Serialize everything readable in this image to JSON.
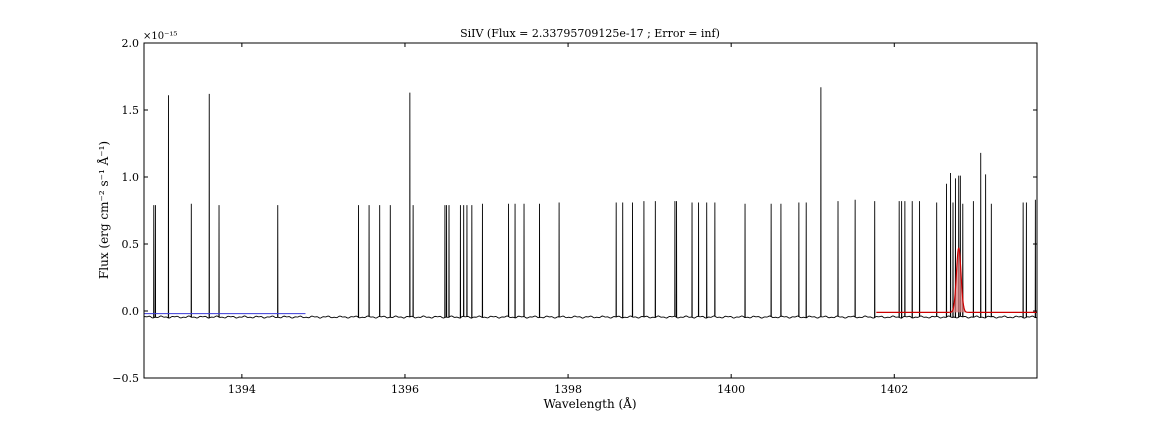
{
  "chart_data": {
    "type": "line",
    "title": "SiIV (Flux = 2.33795709125e-17 ; Error = inf)",
    "xlabel": "Wavelength (Å)",
    "ylabel": "Flux (erg cm⁻² s⁻¹ Å⁻¹)",
    "y_multiplier_label": "×10⁻¹⁵",
    "xlim": [
      1392.8,
      1403.75
    ],
    "ylim": [
      -0.5,
      2.0
    ],
    "x_ticks": [
      1394,
      1396,
      1398,
      1400,
      1402
    ],
    "x_tick_labels": [
      "1394",
      "1396",
      "1398",
      "1400",
      "1402"
    ],
    "y_ticks": [
      -0.5,
      0.0,
      0.5,
      1.0,
      1.5,
      2.0
    ],
    "y_tick_labels": [
      "−0.5",
      "0.0",
      "0.5",
      "1.0",
      "1.5",
      "2.0"
    ],
    "grid": false,
    "spectrum": {
      "color": "#000000",
      "baseline": -0.045,
      "noise_amp": 0.008,
      "spikes": [
        [
          1392.92,
          0.79
        ],
        [
          1392.94,
          0.79
        ],
        [
          1393.1,
          1.61
        ],
        [
          1393.38,
          0.8
        ],
        [
          1393.6,
          1.62
        ],
        [
          1393.72,
          0.79
        ],
        [
          1394.44,
          0.79
        ],
        [
          1395.43,
          0.79
        ],
        [
          1395.56,
          0.79
        ],
        [
          1395.69,
          0.79
        ],
        [
          1395.82,
          0.79
        ],
        [
          1396.06,
          1.63
        ],
        [
          1396.1,
          0.79
        ],
        [
          1396.49,
          0.79
        ],
        [
          1396.51,
          0.79
        ],
        [
          1396.54,
          0.79
        ],
        [
          1396.68,
          0.79
        ],
        [
          1396.72,
          0.79
        ],
        [
          1396.76,
          0.79
        ],
        [
          1396.82,
          0.79
        ],
        [
          1396.95,
          0.8
        ],
        [
          1397.27,
          0.8
        ],
        [
          1397.35,
          0.8
        ],
        [
          1397.46,
          0.8
        ],
        [
          1397.65,
          0.8
        ],
        [
          1397.89,
          0.81
        ],
        [
          1398.59,
          0.81
        ],
        [
          1398.67,
          0.81
        ],
        [
          1398.79,
          0.81
        ],
        [
          1398.93,
          0.82
        ],
        [
          1399.07,
          0.82
        ],
        [
          1399.31,
          0.82
        ],
        [
          1399.33,
          0.82
        ],
        [
          1399.52,
          0.81
        ],
        [
          1399.6,
          0.81
        ],
        [
          1399.7,
          0.81
        ],
        [
          1399.8,
          0.81
        ],
        [
          1400.17,
          0.8
        ],
        [
          1400.49,
          0.8
        ],
        [
          1400.61,
          0.8
        ],
        [
          1400.83,
          0.81
        ],
        [
          1400.92,
          0.81
        ],
        [
          1401.1,
          1.67
        ],
        [
          1401.31,
          0.82
        ],
        [
          1401.52,
          0.83
        ],
        [
          1401.76,
          0.82
        ],
        [
          1402.06,
          0.82
        ],
        [
          1402.09,
          0.82
        ],
        [
          1402.13,
          0.82
        ],
        [
          1402.22,
          0.82
        ],
        [
          1402.31,
          0.82
        ],
        [
          1402.52,
          0.81
        ],
        [
          1402.64,
          0.95
        ],
        [
          1402.69,
          1.03
        ],
        [
          1402.72,
          0.81
        ],
        [
          1402.75,
          0.99
        ],
        [
          1402.79,
          1.01
        ],
        [
          1402.81,
          1.01
        ],
        [
          1402.84,
          0.8
        ],
        [
          1402.97,
          0.82
        ],
        [
          1403.06,
          1.18
        ],
        [
          1403.12,
          1.02
        ],
        [
          1403.19,
          0.8
        ],
        [
          1403.58,
          0.81
        ],
        [
          1403.62,
          0.81
        ],
        [
          1403.73,
          0.83
        ]
      ]
    },
    "continuum_left": {
      "color": "#3a3ad8",
      "x": [
        1392.8,
        1394.78
      ],
      "y": [
        -0.02,
        -0.02
      ]
    },
    "fit": {
      "color": "#cc0000",
      "fill": "#d98080",
      "x_range": [
        1401.78,
        1403.75
      ],
      "baseline": -0.01,
      "center": 1402.79,
      "amplitude": 0.48,
      "width": 0.028
    }
  }
}
